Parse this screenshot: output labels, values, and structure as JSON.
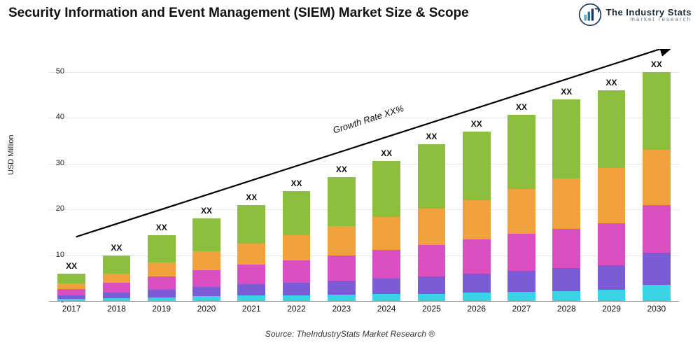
{
  "title": {
    "text": "Security Information and Event Management (SIEM) Market Size & Scope",
    "fontsize": 19
  },
  "logo": {
    "line1": "The Industry Stats",
    "line2": "market research",
    "icon_colors": [
      "#163a5f",
      "#2a6f97",
      "#61a5c2"
    ]
  },
  "source": "Source: TheIndustryStats Market Research ®",
  "chart": {
    "type": "stacked-bar",
    "ylabel": "USD Million",
    "label_fontsize": 11,
    "ylim": [
      0,
      55
    ],
    "yticks": [
      0,
      10,
      20,
      30,
      40,
      50
    ],
    "grid_color": "#e6e6e6",
    "baseline_color": "#999999",
    "background_color": "#ffffff",
    "bar_width_ratio": 0.62,
    "bar_label": "XX",
    "bar_label_fontsize": 12,
    "categories": [
      "2017",
      "2018",
      "2019",
      "2020",
      "2021",
      "2022",
      "2023",
      "2024",
      "2025",
      "2026",
      "2027",
      "2028",
      "2029",
      "2030"
    ],
    "series_colors": [
      "#3ad2e5",
      "#7b5cd6",
      "#d94fc0",
      "#f2a23c",
      "#8bbf3d"
    ],
    "series": [
      [
        0.4,
        0.6,
        0.8,
        1.0,
        1.2,
        1.3,
        1.4,
        1.5,
        1.6,
        1.8,
        2.0,
        2.2,
        2.4,
        3.5
      ],
      [
        0.8,
        1.2,
        1.6,
        2.0,
        2.4,
        2.6,
        3.0,
        3.4,
        3.8,
        4.2,
        4.6,
        5.0,
        5.4,
        7.0
      ],
      [
        1.4,
        2.2,
        3.0,
        3.8,
        4.4,
        5.0,
        5.6,
        6.2,
        6.8,
        7.4,
        8.0,
        8.6,
        9.2,
        10.5
      ],
      [
        1.2,
        2.0,
        3.0,
        4.0,
        4.6,
        5.5,
        6.4,
        7.2,
        8.0,
        8.6,
        9.8,
        11.0,
        12.0,
        12.0
      ],
      [
        2.2,
        4.0,
        6.0,
        7.2,
        8.4,
        9.6,
        10.6,
        12.2,
        14.0,
        15.0,
        16.2,
        17.2,
        17.0,
        17.0
      ]
    ],
    "growth_arrow": {
      "label": "Growth Rate XX%",
      "start": {
        "x_index": 0.1,
        "y": 14
      },
      "end": {
        "x_index": 13.4,
        "y": 56
      },
      "stroke": "#000000",
      "stroke_width": 2.2
    }
  }
}
